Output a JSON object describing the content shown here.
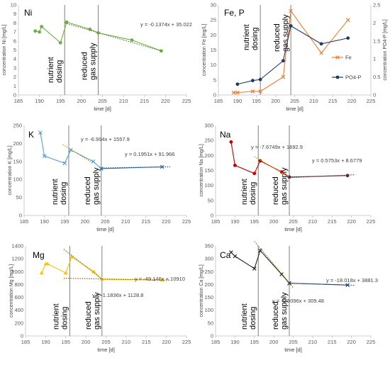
{
  "chart_data": [
    {
      "type": "line",
      "title": "Ni",
      "ylabel": "concentration Ni [mg/L]",
      "xlabel": "time [d]",
      "xlim": [
        185,
        225
      ],
      "xticks": [
        185,
        190,
        195,
        200,
        205,
        210,
        215,
        220,
        225
      ],
      "ylim": [
        0,
        10
      ],
      "yticks": [
        0,
        1,
        2,
        3,
        4,
        5,
        6,
        7,
        8,
        9,
        10
      ],
      "grid": false,
      "color": "#70ad47",
      "marker": "circle",
      "series": [
        {
          "x": [
            189,
            190,
            190.5,
            195,
            196.5,
            202,
            204,
            212,
            219
          ],
          "y": [
            7.1,
            7.0,
            7.6,
            5.8,
            8.1,
            7.3,
            6.9,
            6.1,
            4.9
          ]
        }
      ],
      "trendlines": [
        {
          "x": [
            196,
            219
          ],
          "y": [
            8.0,
            4.9
          ],
          "label": "y = -0.1374x + 35.022",
          "color": "#507e32"
        }
      ],
      "events": [
        {
          "x": 196,
          "label": "nutrient dosing"
        },
        {
          "x": 204,
          "label": "reduced gas supply"
        }
      ]
    },
    {
      "type": "line",
      "title": "Fe, P",
      "ylabel": "concentration Fe [mg/L]",
      "y2label": "concentration PO4-P [mg/L]",
      "xlabel": "time [d]",
      "xlim": [
        185,
        225
      ],
      "xticks": [
        185,
        190,
        195,
        200,
        205,
        210,
        215,
        220,
        225
      ],
      "ylim": [
        0,
        30
      ],
      "yticks": [
        0,
        5,
        10,
        15,
        20,
        25,
        30
      ],
      "y2lim": [
        0,
        2.5
      ],
      "y2ticks": [
        0,
        0.5,
        1,
        1.5,
        2,
        2.5
      ],
      "legend": "right",
      "series": [
        {
          "name": "Fe",
          "axis": "left",
          "color": "#ed7d31",
          "marker": "x",
          "x": [
            189,
            190,
            194,
            196,
            202,
            204,
            212,
            219
          ],
          "y": [
            0.8,
            0.8,
            1.2,
            1.2,
            6,
            28,
            14,
            25
          ]
        },
        {
          "name": "PO4-P",
          "axis": "right",
          "color": "#1f3864",
          "marker": "circle",
          "x": [
            190,
            194,
            196,
            202,
            204,
            212,
            219
          ],
          "y": [
            0.3,
            0.4,
            0.43,
            0.95,
            1.92,
            1.42,
            1.58
          ]
        }
      ],
      "events": [
        {
          "x": 196,
          "label": "nutrient dosing"
        },
        {
          "x": 204,
          "label": "reduced gas supply"
        }
      ]
    },
    {
      "type": "line",
      "title": "K",
      "ylabel": "concentration K [mg/L]",
      "xlabel": "time [d]",
      "xlim": [
        185,
        225
      ],
      "xticks": [
        185,
        190,
        195,
        200,
        205,
        210,
        215,
        220,
        225
      ],
      "ylim": [
        0,
        250
      ],
      "yticks": [
        0,
        50,
        100,
        150,
        200,
        250
      ],
      "series": [
        {
          "color": "#5b9bd5",
          "marker": "x",
          "x": [
            189,
            190,
            195,
            196.5,
            202,
            204
          ],
          "y": [
            230,
            165,
            145,
            182,
            150,
            130
          ]
        },
        {
          "color": "#2e75b6",
          "marker": "x",
          "x": [
            204,
            219
          ],
          "y": [
            130,
            135
          ]
        }
      ],
      "trendlines": [
        {
          "x": [
            194.5,
            202
          ],
          "y": [
            197,
            145
          ],
          "label": "y = -6.994x + 1557.9",
          "color": "#b8a000"
        },
        {
          "x": [
            204,
            221
          ],
          "y": [
            131.8,
            135.1
          ],
          "label": "y = 0.1951x + 91.966",
          "color": "#1f4e79"
        }
      ],
      "events": [
        {
          "x": 196,
          "label": "nutrient dosing"
        },
        {
          "x": 204,
          "label": "reduced gas supply"
        }
      ]
    },
    {
      "type": "line",
      "title": "Na",
      "ylabel": "concentration Na [mg/L]",
      "xlabel": "time [d]",
      "xlim": [
        185,
        225
      ],
      "xticks": [
        185,
        190,
        195,
        200,
        205,
        210,
        215,
        220,
        225
      ],
      "ylim": [
        0,
        300
      ],
      "yticks": [
        0,
        50,
        100,
        150,
        200,
        250,
        300
      ],
      "series": [
        {
          "color": "#c00000",
          "marker": "circle",
          "x": [
            189,
            190,
            195,
            196.5,
            202,
            204
          ],
          "y": [
            245,
            167,
            140,
            182,
            145,
            128
          ]
        },
        {
          "color": "#7b1f2b",
          "marker": "circle",
          "x": [
            204,
            219
          ],
          "y": [
            128,
            133
          ]
        }
      ],
      "trendlines": [
        {
          "x": [
            195,
            204
          ],
          "y": [
            196.3,
            127.2
          ],
          "label": "y = -7.6749x + 1692.9",
          "color": "#b8a000"
        },
        {
          "x": [
            204,
            221
          ],
          "y": [
            126.0,
            135.8
          ],
          "label": "y = 0.5753x + 8.6779",
          "color": "#1f4e79"
        }
      ],
      "events": [
        {
          "x": 196,
          "label": "nutrient dosing"
        },
        {
          "x": 204,
          "label": "reduced gas supply"
        }
      ]
    },
    {
      "type": "line",
      "title": "Mg",
      "ylabel": "concentration Mg [mg/L]",
      "xlabel": "time [d]",
      "xlim": [
        185,
        225
      ],
      "xticks": [
        185,
        190,
        195,
        200,
        205,
        210,
        215,
        220,
        225
      ],
      "ylim": [
        0,
        1400
      ],
      "yticks": [
        0,
        200,
        400,
        600,
        800,
        1000,
        1200,
        1400
      ],
      "series": [
        {
          "color": "#ffc000",
          "marker": "triangle",
          "x": [
            189,
            190,
            190.5,
            195,
            196.5,
            202,
            204,
            219
          ],
          "y": [
            980,
            1120,
            1120,
            980,
            1230,
            1000,
            880,
            870
          ]
        }
      ],
      "trendlines": [
        {
          "x": [
            194.5,
            204
          ],
          "y": [
            1348,
            882
          ],
          "label": "y = -49.146x + 10910",
          "color": "#806000"
        },
        {
          "x": [
            194.5,
            221
          ],
          "y": [
            898,
            867
          ],
          "label": "y = -1.1836x + 1128.8",
          "color": "#806000"
        }
      ],
      "events": [
        {
          "x": 196,
          "label": "nutrient dosing"
        },
        {
          "x": 204,
          "label": "reduced gas supply"
        }
      ]
    },
    {
      "type": "line",
      "title": "Ca",
      "ylabel": "concentration Ca [mg/L]",
      "xlabel": "time [d]",
      "xlim": [
        185,
        225
      ],
      "xticks": [
        185,
        190,
        195,
        200,
        205,
        210,
        215,
        220,
        225
      ],
      "ylim": [
        0,
        350
      ],
      "yticks": [
        0,
        50,
        100,
        150,
        200,
        250,
        300,
        350
      ],
      "series": [
        {
          "color": "#262626",
          "marker": "x",
          "x": [
            189,
            190,
            195,
            196.5,
            202,
            204
          ],
          "y": [
            325,
            310,
            262,
            332,
            240,
            205
          ]
        },
        {
          "color": "#1f3864",
          "marker": "x",
          "x": [
            204,
            219
          ],
          "y": [
            205,
            198
          ]
        }
      ],
      "trendlines": [
        {
          "x": [
            195,
            205
          ],
          "y": [
            368,
            188
          ],
          "label": "y = -18.018x + 3881.3",
          "color": "#806000"
        },
        {
          "x": [
            204,
            221
          ],
          "y": [
            205.5,
            196.8
          ],
          "label": "y = -0.5096x + 309.48",
          "color": "#1f4e79"
        }
      ],
      "events": [
        {
          "x": 196,
          "label": "nutrient dosing"
        },
        {
          "x": 204,
          "label": "reduced gas supply"
        }
      ]
    }
  ]
}
